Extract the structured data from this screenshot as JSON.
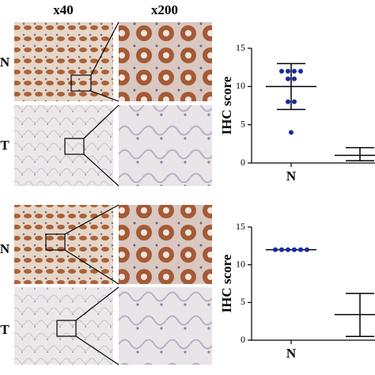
{
  "image_labels": {
    "columns": [
      "x40",
      "x200"
    ],
    "rows": [
      "N",
      "T",
      "N",
      "T"
    ]
  },
  "chart_data": [
    {
      "type": "dot",
      "ylabel": "IHC score",
      "categories": [
        "N",
        null
      ],
      "color": "#1a2aa0",
      "ylim": [
        0,
        15
      ],
      "yticks": [
        0,
        5,
        10,
        15
      ],
      "points": [
        [
          12,
          12,
          12,
          12,
          11,
          11,
          8,
          8,
          4
        ],
        []
      ],
      "mean": [
        10,
        1
      ],
      "upper": [
        13,
        2
      ],
      "lower": [
        7,
        0.3
      ]
    },
    {
      "type": "dot",
      "ylabel": "IHC score",
      "categories": [
        "N",
        null
      ],
      "color": "#1a2aa0",
      "ylim": [
        0,
        15
      ],
      "yticks": [
        0,
        5,
        10,
        15
      ],
      "points": [
        [
          12,
          12,
          12,
          12,
          12,
          12
        ],
        []
      ],
      "mean": [
        12,
        3.4
      ],
      "upper": [
        null,
        6.2
      ],
      "lower": [
        null,
        0.5
      ]
    }
  ]
}
